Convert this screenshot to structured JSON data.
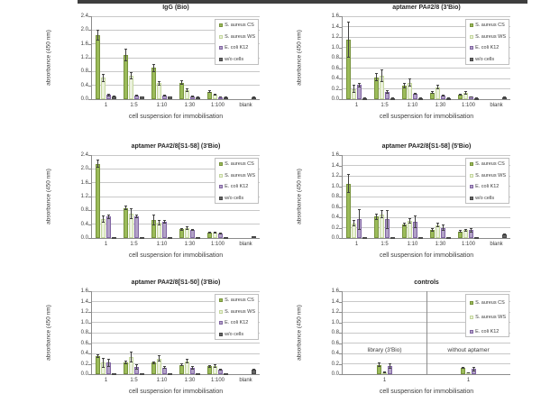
{
  "page": {
    "top_strip_color": "#3e3e3e",
    "background": "#ffffff"
  },
  "colors": {
    "cs": {
      "fill": "#9bbb59",
      "border": "#77933c"
    },
    "ws": {
      "fill": "#ebf1dd",
      "border": "#c3d69b"
    },
    "k12": {
      "fill": "#b2a2c7",
      "border": "#8064a2"
    },
    "wo": {
      "fill": "#646464",
      "border": "#484848"
    },
    "grid": "#c8c8c8",
    "axis": "#8c8c8c",
    "error": "#404040",
    "text": "#3c3c3c"
  },
  "chart_data": [
    {
      "type": "bar",
      "title": "IgG (Bio)",
      "ylabel": "absorbance (450 nm)",
      "xlabel": "cell suspension for immobilisation",
      "ylim": [
        0,
        2.4
      ],
      "ystep": 0.4,
      "grid": true,
      "legend_position": "upper right",
      "categories": [
        "1",
        "1:5",
        "1:10",
        "1:30",
        "1:100",
        "blank"
      ],
      "series": [
        {
          "name": "S. aureus CS",
          "color": "cs",
          "values": [
            1.85,
            1.27,
            0.91,
            0.48,
            0.22,
            0
          ],
          "errors": [
            0.15,
            0.18,
            0.12,
            0.06,
            0.03,
            0
          ]
        },
        {
          "name": "S. aureus WS",
          "color": "ws",
          "values": [
            0.62,
            0.68,
            0.46,
            0.26,
            0.13,
            0
          ],
          "errors": [
            0.12,
            0.1,
            0.06,
            0.05,
            0.03,
            0
          ]
        },
        {
          "name": "E. coli K12",
          "color": "k12",
          "values": [
            0.12,
            0.1,
            0.1,
            0.08,
            0.06,
            0
          ],
          "errors": [
            0.04,
            0.03,
            0.03,
            0.02,
            0.02,
            0
          ]
        },
        {
          "name": "w/o cells",
          "color": "wo",
          "values": [
            0.08,
            0.07,
            0.07,
            0.06,
            0.05,
            0.05
          ],
          "errors": [
            0.02,
            0.02,
            0.02,
            0.02,
            0.01,
            0.02
          ]
        }
      ]
    },
    {
      "type": "bar",
      "title": "aptamer PA#2/8 (3'Bio)",
      "ylabel": "absorbance (450 nm)",
      "xlabel": "cell suspension for immobilisation",
      "ylim": [
        0,
        1.6
      ],
      "ystep": 0.2,
      "grid": true,
      "legend_position": "upper right",
      "categories": [
        "1",
        "1:5",
        "1:10",
        "1:30",
        "1:100",
        "blank"
      ],
      "series": [
        {
          "name": "S. aureus CS",
          "color": "cs",
          "values": [
            1.15,
            0.42,
            0.26,
            0.13,
            0.09,
            0
          ],
          "errors": [
            0.35,
            0.08,
            0.05,
            0.03,
            0.02,
            0
          ]
        },
        {
          "name": "S. aureus WS",
          "color": "ws",
          "values": [
            0.2,
            0.45,
            0.32,
            0.23,
            0.12,
            0
          ],
          "errors": [
            0.08,
            0.12,
            0.08,
            0.04,
            0.03,
            0
          ]
        },
        {
          "name": "E. coli K12",
          "color": "k12",
          "values": [
            0.27,
            0.14,
            0.1,
            0.07,
            0.05,
            0
          ],
          "errors": [
            0.05,
            0.03,
            0.02,
            0.02,
            0.01,
            0
          ]
        },
        {
          "name": "w/o cells",
          "color": "wo",
          "values": [
            0.02,
            0.02,
            0.02,
            0.02,
            0.02,
            0.04
          ],
          "errors": [
            0.01,
            0.01,
            0.01,
            0.01,
            0.01,
            0.01
          ]
        }
      ]
    },
    {
      "type": "bar",
      "title": "aptamer PA#2/8[S1-58] (3'Bio)",
      "ylabel": "absorbance (450 nm)",
      "xlabel": "cell suspension for immobilisation",
      "ylim": [
        0,
        2.4
      ],
      "ystep": 0.4,
      "grid": true,
      "legend_position": "upper right",
      "categories": [
        "1",
        "1:5",
        "1:10",
        "1:30",
        "1:100",
        "blank"
      ],
      "series": [
        {
          "name": "S. aureus CS",
          "color": "cs",
          "values": [
            2.15,
            0.87,
            0.52,
            0.25,
            0.15,
            0
          ],
          "errors": [
            0.12,
            0.06,
            0.15,
            0.04,
            0.03,
            0
          ]
        },
        {
          "name": "S. aureus WS",
          "color": "ws",
          "values": [
            0.55,
            0.7,
            0.44,
            0.29,
            0.16,
            0
          ],
          "errors": [
            0.1,
            0.15,
            0.08,
            0.06,
            0.03,
            0
          ]
        },
        {
          "name": "E. coli K12",
          "color": "k12",
          "values": [
            0.62,
            0.63,
            0.46,
            0.23,
            0.13,
            0
          ],
          "errors": [
            0.06,
            0.05,
            0.05,
            0.03,
            0.02,
            0
          ]
        },
        {
          "name": "w/o cells",
          "color": "wo",
          "values": [
            0.02,
            0.02,
            0.02,
            0.02,
            0.02,
            0.04
          ],
          "errors": [
            0.01,
            0.01,
            0.01,
            0.01,
            0.01,
            0.01
          ]
        }
      ]
    },
    {
      "type": "bar",
      "title": "aptamer PA#2/8[S1-58] (5'Bio)",
      "ylabel": "absorbance (450 nm)",
      "xlabel": "cell suspension for immobilisation",
      "ylim": [
        0,
        1.6
      ],
      "ystep": 0.2,
      "grid": true,
      "legend_position": "upper right",
      "categories": [
        "1",
        "1:5",
        "1:10",
        "1:30",
        "1:100",
        "blank"
      ],
      "series": [
        {
          "name": "S. aureus CS",
          "color": "cs",
          "values": [
            1.05,
            0.41,
            0.26,
            0.16,
            0.13,
            0
          ],
          "errors": [
            0.18,
            0.06,
            0.04,
            0.03,
            0.03,
            0
          ]
        },
        {
          "name": "S. aureus WS",
          "color": "ws",
          "values": [
            0.28,
            0.46,
            0.33,
            0.25,
            0.15,
            0
          ],
          "errors": [
            0.06,
            0.08,
            0.05,
            0.04,
            0.03,
            0
          ]
        },
        {
          "name": "E. coli K12",
          "color": "k12",
          "values": [
            0.36,
            0.36,
            0.31,
            0.2,
            0.15,
            0
          ],
          "errors": [
            0.2,
            0.18,
            0.12,
            0.06,
            0.04,
            0
          ]
        },
        {
          "name": "w/o cells",
          "color": "wo",
          "values": [
            0.02,
            0.02,
            0.02,
            0.02,
            0.02,
            0.07
          ],
          "errors": [
            0,
            0,
            0,
            0,
            0,
            0.02
          ]
        }
      ]
    },
    {
      "type": "bar",
      "title": "aptamer PA#2/8[S1-50] (3'Bio)",
      "ylabel": "absorbance (450 nm)",
      "xlabel": "cell suspension for immobilisation",
      "ylim": [
        0,
        1.6
      ],
      "ystep": 0.2,
      "grid": true,
      "legend_position": "upper right",
      "categories": [
        "1",
        "1:5",
        "1:10",
        "1:30",
        "1:100",
        "blank"
      ],
      "series": [
        {
          "name": "S. aureus CS",
          "color": "cs",
          "values": [
            0.35,
            0.23,
            0.22,
            0.18,
            0.15,
            0
          ],
          "errors": [
            0.04,
            0.03,
            0.03,
            0.03,
            0.02,
            0
          ]
        },
        {
          "name": "S. aureus WS",
          "color": "ws",
          "values": [
            0.22,
            0.33,
            0.3,
            0.25,
            0.16,
            0
          ],
          "errors": [
            0.1,
            0.1,
            0.06,
            0.04,
            0.03,
            0
          ]
        },
        {
          "name": "E. coli K12",
          "color": "k12",
          "values": [
            0.22,
            0.14,
            0.13,
            0.12,
            0.09,
            0
          ],
          "errors": [
            0.08,
            0.05,
            0.03,
            0.03,
            0.02,
            0
          ]
        },
        {
          "name": "w/o cells",
          "color": "wo",
          "values": [
            0.02,
            0.02,
            0.02,
            0.02,
            0.02,
            0.09
          ],
          "errors": [
            0,
            0,
            0,
            0,
            0,
            0.02
          ]
        }
      ]
    },
    {
      "type": "bar",
      "title": "controls",
      "ylabel": "absorbance (450 nm)",
      "xlabel": "cell suspension for immobilisation",
      "ylim": [
        0,
        1.6
      ],
      "ystep": 0.2,
      "grid": true,
      "legend_position": "upper right",
      "categories": [
        "1",
        "1"
      ],
      "divider": true,
      "annotations": [
        "library (3'Bio)",
        "without aptamer"
      ],
      "series": [
        {
          "name": "S. aureus CS",
          "color": "cs",
          "values": [
            0.18,
            0.12
          ],
          "errors": [
            0.04,
            0.02
          ]
        },
        {
          "name": "S. aureus WS",
          "color": "ws",
          "values": [
            0.04,
            0.03
          ],
          "errors": [
            0.02,
            0.01
          ]
        },
        {
          "name": "E. coli K12",
          "color": "k12",
          "values": [
            0.16,
            0.1
          ],
          "errors": [
            0.05,
            0.04
          ]
        }
      ]
    }
  ]
}
